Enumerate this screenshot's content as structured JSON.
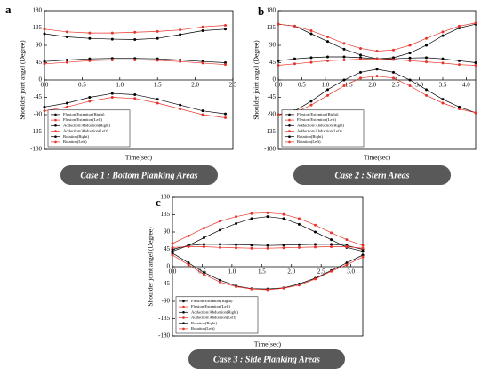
{
  "chart_data": [
    {
      "type": "line",
      "panel": "a",
      "caption": "Case 1 : Bottom Planking Areas",
      "xlabel": "Time(sec)",
      "ylabel": "Shoulder joint angel (Degree)",
      "x": [
        0,
        0.3,
        0.6,
        0.9,
        1.2,
        1.5,
        1.8,
        2.1,
        2.4
      ],
      "xlim": [
        0,
        2.5
      ],
      "xticks": [
        {
          "value": 0,
          "label": "0.0"
        },
        0.5,
        {
          "value": 1,
          "label": "1.0"
        },
        1.5,
        {
          "value": 2,
          "label": "2.0"
        },
        2.5
      ],
      "ylim": [
        -180,
        180
      ],
      "yticks": [
        180,
        135,
        90,
        45,
        0,
        -45,
        -90,
        -135,
        -180
      ],
      "legend": "lower left",
      "series": [
        {
          "name": "Flexion/Extention(Right)",
          "color": "#000000",
          "values": [
            120,
            112,
            108,
            106,
            105,
            108,
            118,
            128,
            132
          ]
        },
        {
          "name": "Flexion/Extention(Left)",
          "color": "#e8332a",
          "values": [
            132,
            125,
            122,
            122,
            124,
            126,
            130,
            138,
            142
          ]
        },
        {
          "name": "Addaction/Abduction(Right)",
          "color": "#000000",
          "values": [
            48,
            52,
            55,
            56,
            56,
            55,
            52,
            48,
            45
          ]
        },
        {
          "name": "Addaction/Abduction(Left)",
          "color": "#e8332a",
          "values": [
            42,
            46,
            50,
            52,
            52,
            51,
            48,
            44,
            40
          ]
        },
        {
          "name": "Rotation(Right)",
          "color": "#000000",
          "values": [
            -70,
            -60,
            -45,
            -35,
            -38,
            -50,
            -65,
            -80,
            -88
          ]
        },
        {
          "name": "Rotation(Left)",
          "color": "#e8332a",
          "values": [
            -80,
            -70,
            -55,
            -45,
            -48,
            -60,
            -75,
            -90,
            -98
          ]
        }
      ]
    },
    {
      "type": "line",
      "panel": "b",
      "caption": "Case 2 : Stern Areas",
      "xlabel": "Time(sec)",
      "ylabel": "Shoulder joint angel (Degree)",
      "x": [
        0,
        0.35,
        0.7,
        1.05,
        1.4,
        1.75,
        2.1,
        2.45,
        2.8,
        3.15,
        3.5,
        3.85,
        4.2
      ],
      "xlim": [
        0,
        4.2
      ],
      "xticks": [
        {
          "value": 0,
          "label": "0.0"
        },
        0.5,
        {
          "value": 1,
          "label": "1.0"
        },
        1.5,
        {
          "value": 2,
          "label": "2.0"
        },
        2.5,
        {
          "value": 3,
          "label": "3.0"
        },
        3.5,
        {
          "value": 4,
          "label": "4.0"
        }
      ],
      "ylim": [
        -180,
        180
      ],
      "yticks": [
        180,
        135,
        90,
        45,
        0,
        -45,
        -90,
        -135,
        -180
      ],
      "legend": "lower left",
      "series": [
        {
          "name": "Flexion/Extention(Right)",
          "color": "#000000",
          "values": [
            145,
            140,
            120,
            100,
            80,
            65,
            55,
            58,
            70,
            90,
            115,
            135,
            145
          ]
        },
        {
          "name": "Flexion/Extention(Left)",
          "color": "#e8332a",
          "values": [
            145,
            140,
            128,
            112,
            95,
            82,
            75,
            78,
            90,
            108,
            125,
            140,
            148
          ]
        },
        {
          "name": "Addaction/Abduction(Right)",
          "color": "#000000",
          "values": [
            50,
            55,
            58,
            60,
            60,
            58,
            55,
            55,
            57,
            58,
            55,
            50,
            45
          ]
        },
        {
          "name": "Addaction/Abduction(Left)",
          "color": "#e8332a",
          "values": [
            38,
            42,
            46,
            50,
            52,
            54,
            55,
            53,
            50,
            47,
            44,
            40,
            38
          ]
        },
        {
          "name": "Rotation(Right)",
          "color": "#000000",
          "values": [
            -90,
            -80,
            -55,
            -25,
            0,
            20,
            28,
            20,
            0,
            -25,
            -50,
            -70,
            -85
          ]
        },
        {
          "name": "Rotation(Left)",
          "color": "#e8332a",
          "values": [
            -90,
            -85,
            -65,
            -40,
            -15,
            5,
            10,
            5,
            -15,
            -40,
            -60,
            -75,
            -85
          ]
        }
      ]
    },
    {
      "type": "line",
      "panel": "c",
      "caption": "Case 3 : Side Planking Areas",
      "xlabel": "Time(sec)",
      "ylabel": "Shoulder joint angel (Degree)",
      "x": [
        0,
        0.27,
        0.53,
        0.8,
        1.07,
        1.33,
        1.6,
        1.87,
        2.13,
        2.4,
        2.67,
        2.93,
        3.2
      ],
      "xlim": [
        0,
        3.2
      ],
      "xticks": [
        {
          "value": 0,
          "label": "0.0"
        },
        0.5,
        {
          "value": 1,
          "label": "1.0"
        },
        1.5,
        {
          "value": 2,
          "label": "2.0"
        },
        2.5,
        {
          "value": 3,
          "label": "3.0"
        }
      ],
      "ylim": [
        -180,
        180
      ],
      "yticks": [
        180,
        135,
        90,
        45,
        0,
        -45,
        -90,
        -135,
        -180
      ],
      "legend": "lower left",
      "series": [
        {
          "name": "Flexion/Extention(Right)",
          "color": "#000000",
          "values": [
            40,
            55,
            75,
            95,
            112,
            125,
            130,
            125,
            110,
            90,
            70,
            50,
            40
          ]
        },
        {
          "name": "Flexion/Extention(Left)",
          "color": "#e8332a",
          "values": [
            60,
            80,
            100,
            118,
            130,
            138,
            140,
            136,
            125,
            108,
            88,
            70,
            55
          ]
        },
        {
          "name": "Addaction/Abduction(Right)",
          "color": "#000000",
          "values": [
            45,
            55,
            58,
            58,
            57,
            56,
            55,
            56,
            57,
            58,
            58,
            55,
            45
          ]
        },
        {
          "name": "Addaction/Abduction(Left)",
          "color": "#e8332a",
          "values": [
            50,
            52,
            52,
            50,
            49,
            48,
            48,
            49,
            50,
            51,
            52,
            52,
            48
          ]
        },
        {
          "name": "Rotation(Right)",
          "color": "#000000",
          "values": [
            35,
            10,
            -15,
            -35,
            -50,
            -57,
            -58,
            -55,
            -45,
            -30,
            -10,
            10,
            30
          ]
        },
        {
          "name": "Rotation(Left)",
          "color": "#e8332a",
          "values": [
            30,
            5,
            -20,
            -40,
            -52,
            -58,
            -60,
            -56,
            -48,
            -32,
            -12,
            5,
            25
          ]
        }
      ]
    }
  ]
}
